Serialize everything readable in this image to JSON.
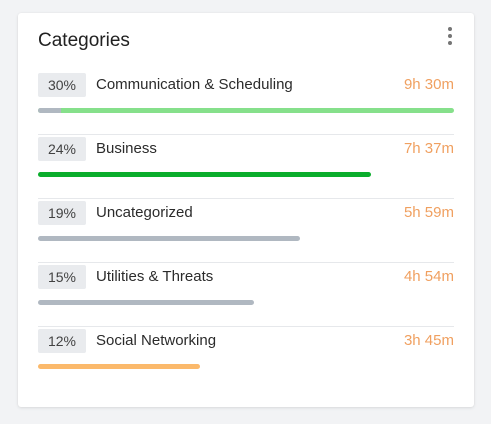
{
  "card": {
    "title": "Categories",
    "menu_icon": "more-vertical-icon"
  },
  "categories": [
    {
      "percent": "30%",
      "name": "Communication & Scheduling",
      "time": "9h 30m",
      "bar_fraction": 1.0,
      "bar_color": "#86e08b",
      "muted_fraction": 0.055,
      "muted_color": "#b0b8c1"
    },
    {
      "percent": "24%",
      "name": "Business",
      "time": "7h 37m",
      "bar_fraction": 0.8,
      "bar_color": "#0aad2c"
    },
    {
      "percent": "19%",
      "name": "Uncategorized",
      "time": "5h 59m",
      "bar_fraction": 0.63,
      "bar_color": "#b0b8c1"
    },
    {
      "percent": "15%",
      "name": "Utilities & Threats",
      "time": "4h 54m",
      "bar_fraction": 0.52,
      "bar_color": "#b0b8c1"
    },
    {
      "percent": "12%",
      "name": "Social Networking",
      "time": "3h 45m",
      "bar_fraction": 0.39,
      "bar_color": "#fbb96b"
    }
  ],
  "colors": {
    "time_text": "#f0a060",
    "badge_bg": "#e9ebee",
    "divider": "#e6e8eb"
  }
}
